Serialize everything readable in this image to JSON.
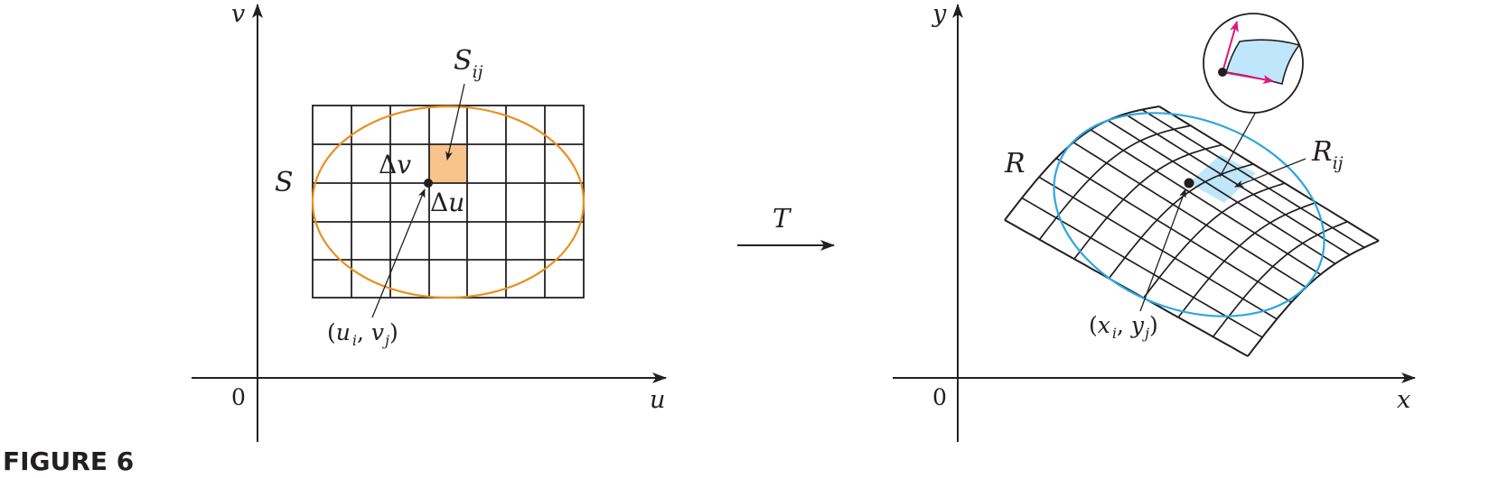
{
  "figure_label": "FIGURE 6",
  "colors": {
    "ink": "#231f20",
    "region_S_ellipse": "#e8901e",
    "cell_S_fill": "#f9c48c",
    "region_R_ellipse": "#2ea6de",
    "cell_R_fill": "#bfe6fa",
    "tangent_vectors": "#e0177b"
  },
  "left_plane": {
    "axis_vertical": "v",
    "axis_horizontal": "u",
    "origin": "0",
    "region_label": "S",
    "cell_label": {
      "main": "S",
      "sub": "ij"
    },
    "delta_v": {
      "delta": "Δ",
      "var": "v"
    },
    "delta_u": {
      "delta": "Δ",
      "var": "u"
    },
    "point_label": {
      "open": "(",
      "u": "u",
      "i": "i",
      "comma": ", ",
      "v": "v",
      "j": "j",
      "close": ")"
    }
  },
  "transformation": {
    "label": "T"
  },
  "right_plane": {
    "axis_vertical": "y",
    "axis_horizontal": "x",
    "origin": "0",
    "region_label": "R",
    "cell_label": {
      "main": "R",
      "sub": "ij"
    },
    "point_label": {
      "open": "(",
      "x": "x",
      "i": "i",
      "comma": ", ",
      "y": "y",
      "j": "j",
      "close": ")"
    }
  }
}
